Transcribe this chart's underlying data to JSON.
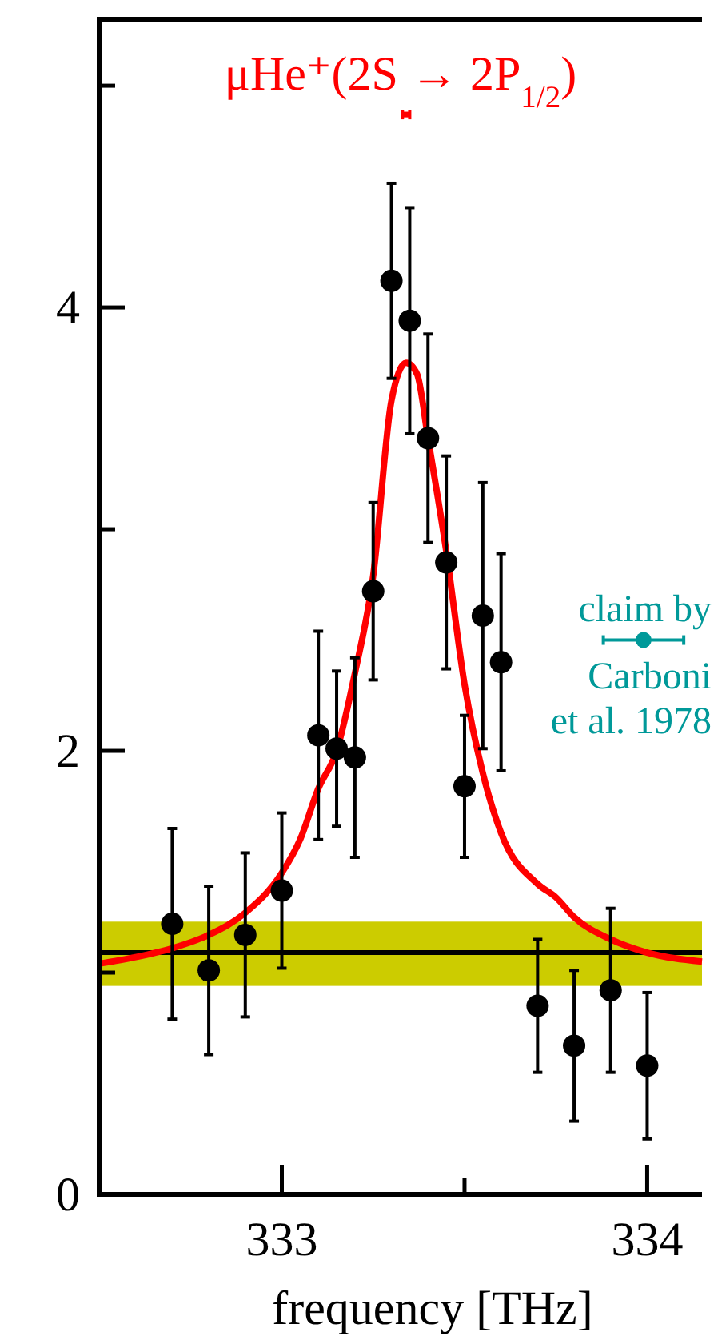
{
  "chart_data": {
    "type": "scatter",
    "title": "μHe⁺(2S → 2P$_{1/2}$)",
    "xlabel": "frequency [THz]",
    "xlim": [
      332.5,
      334.15
    ],
    "xticks": [
      333,
      {
        "value": 333.5,
        "label": null
      },
      334
    ],
    "ylim": [
      0,
      5.3
    ],
    "yticks": [
      0,
      {
        "value": 1,
        "label": null
      },
      2,
      {
        "value": 3,
        "label": null
      },
      4,
      {
        "value": 5,
        "label": null
      }
    ],
    "grid": false,
    "bands": [
      {
        "axis": "y",
        "from": 0.94,
        "to": 1.23,
        "color": "#cccc00"
      }
    ],
    "ref_lines": [
      {
        "axis": "y",
        "value": 1.09,
        "color": "#000000"
      }
    ],
    "series": [
      {
        "type": "line",
        "color": "#ff0000",
        "marker": "none",
        "x": [
          332.5,
          332.6,
          332.7,
          332.8,
          332.9,
          333.0,
          333.05,
          333.1,
          333.15,
          333.2,
          333.25,
          333.3,
          333.34,
          333.37,
          333.4,
          333.45,
          333.5,
          333.55,
          333.6,
          333.7,
          333.75,
          333.8,
          333.9,
          334.0,
          334.15
        ],
        "values": [
          1.04,
          1.07,
          1.11,
          1.17,
          1.27,
          1.45,
          1.6,
          1.83,
          2.0,
          2.35,
          2.79,
          3.58,
          3.75,
          3.7,
          3.41,
          2.9,
          2.3,
          1.9,
          1.63,
          1.4,
          1.34,
          1.25,
          1.15,
          1.09,
          1.05
        ]
      },
      {
        "color": "#000000",
        "marker": "circle",
        "x": [
          332.7,
          332.8,
          332.9,
          333.0,
          333.1,
          333.15,
          333.2,
          333.25,
          333.3,
          333.35,
          333.4,
          333.45,
          333.5,
          333.55,
          333.6,
          333.7,
          333.8,
          333.9,
          334.0
        ],
        "values": [
          1.22,
          1.01,
          1.17,
          1.37,
          2.07,
          2.01,
          1.97,
          2.72,
          4.12,
          3.94,
          3.41,
          2.85,
          1.84,
          2.61,
          2.4,
          0.85,
          0.67,
          0.92,
          0.58
        ],
        "errors": [
          0.43,
          0.38,
          0.37,
          0.35,
          0.47,
          0.35,
          0.45,
          0.4,
          0.44,
          0.51,
          0.47,
          0.48,
          0.32,
          0.6,
          0.49,
          0.3,
          0.34,
          0.37,
          0.33
        ]
      },
      {
        "color": "#ff0000",
        "marker": "square",
        "x": [
          333.34
        ],
        "values": [
          4.87
        ],
        "xerrors": [
          0.01
        ]
      },
      {
        "name": "claim by Carboni et al. 1978",
        "color": "#009999",
        "marker": "circle",
        "x": [
          333.99
        ],
        "values": [
          2.5
        ],
        "xerrors": [
          0.11
        ]
      }
    ]
  }
}
